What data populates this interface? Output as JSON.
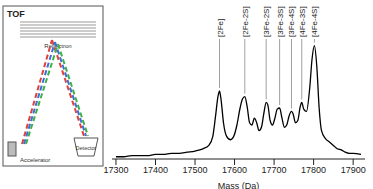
{
  "chart_data": {
    "type": "line",
    "x_label": "Mass (Da)",
    "x": [
      17300,
      17320,
      17340,
      17360,
      17380,
      17400,
      17420,
      17440,
      17460,
      17480,
      17500,
      17520,
      17535,
      17545,
      17552,
      17558,
      17562,
      17566,
      17572,
      17580,
      17590,
      17598,
      17606,
      17614,
      17620,
      17626,
      17632,
      17638,
      17644,
      17650,
      17656,
      17662,
      17668,
      17674,
      17680,
      17684,
      17690,
      17696,
      17702,
      17708,
      17714,
      17720,
      17726,
      17732,
      17738,
      17744,
      17748,
      17754,
      17760,
      17766,
      17770,
      17775,
      17782,
      17790,
      17796,
      17802,
      17808,
      17814,
      17820,
      17830,
      17840,
      17850,
      17860,
      17870,
      17880,
      17890,
      17900,
      17920
    ],
    "values": [
      2,
      2,
      3,
      3,
      3,
      4,
      4,
      5,
      5,
      6,
      7,
      9,
      12,
      20,
      38,
      55,
      60,
      52,
      32,
      20,
      17,
      20,
      30,
      45,
      53,
      55,
      46,
      32,
      30,
      36,
      32,
      25,
      28,
      40,
      50,
      48,
      34,
      30,
      36,
      44,
      45,
      36,
      28,
      30,
      38,
      42,
      40,
      32,
      34,
      46,
      50,
      44,
      42,
      62,
      88,
      100,
      82,
      45,
      25,
      18,
      15,
      12,
      9,
      8,
      6,
      5,
      5,
      4
    ],
    "color": "#000000",
    "xlim": [
      17290,
      17930
    ],
    "xticks": [
      17300,
      17400,
      17500,
      17600,
      17700,
      17800,
      17900
    ],
    "ylim": [
      0,
      105
    ],
    "tick_labels": "x",
    "annotations": [
      {
        "text": "[2Fe]",
        "x": 17562,
        "y": 60
      },
      {
        "text": "[2Fe-2S]",
        "x": 17626,
        "y": 55
      },
      {
        "text": "[3Fe-2S]",
        "x": 17680,
        "y": 50
      },
      {
        "text": "[3Fe-3S]",
        "x": 17714,
        "y": 45
      },
      {
        "text": "[3Fe-4S]",
        "x": 17744,
        "y": 42
      },
      {
        "text": "[4Fe-3S]",
        "x": 17770,
        "y": 50
      },
      {
        "text": "[4Fe-4S]",
        "x": 17802,
        "y": 100
      }
    ]
  },
  "diagram": {
    "title": "TOF",
    "labels": [
      "Reflectron",
      "Accelerator",
      "Detector"
    ]
  }
}
